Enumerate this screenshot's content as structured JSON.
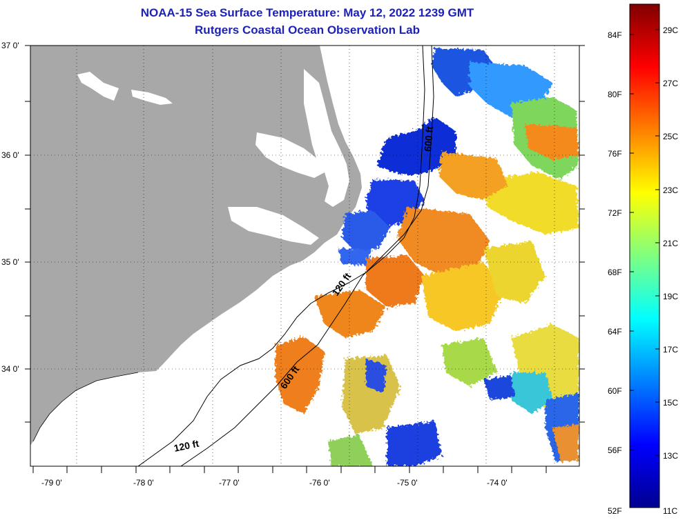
{
  "title": "NOAA-15 Sea Surface Temperature:  May 12, 2022 1239 GMT",
  "subtitle": "Rutgers Coastal Ocean Observation Lab",
  "lat_labels": [
    "37 0'",
    "36 0'",
    "35 0'",
    "34 0'"
  ],
  "lon_labels": [
    "-79 0'",
    "-78 0'",
    "-77 0'",
    "-76 0'",
    "-75 0'",
    "-74 0'"
  ],
  "contour_labels": [
    "120 ft",
    "600 ft",
    "120 ft",
    "600 ft"
  ],
  "colorbar": {
    "fahrenheit": [
      "84F",
      "80F",
      "76F",
      "72F",
      "68F",
      "64F",
      "60F",
      "56F",
      "52F"
    ],
    "celsius": [
      "29C",
      "27C",
      "25C",
      "23C",
      "21C",
      "19C",
      "17C",
      "15C",
      "13C",
      "11C"
    ]
  },
  "colors": {
    "land": "#a8a8a8",
    "title": "#1c22b8",
    "cold": "#00008f",
    "warm": "#8f0000"
  }
}
